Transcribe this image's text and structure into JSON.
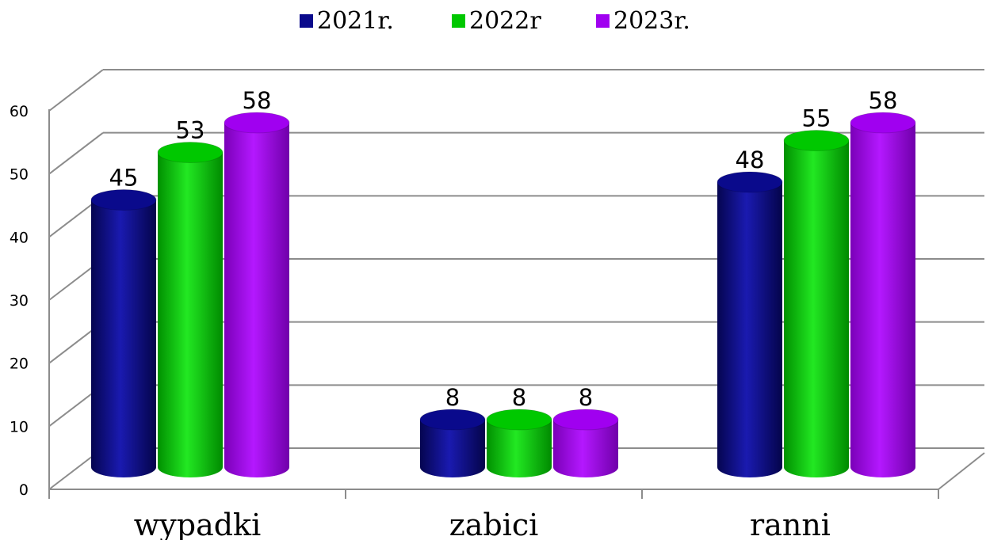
{
  "chart_data": {
    "type": "bar",
    "categories": [
      "wypadki",
      "zabici",
      "ranni"
    ],
    "series": [
      {
        "name": "2021r.",
        "values": [
          45,
          8,
          48
        ],
        "color": "#0a0a8c"
      },
      {
        "name": "2022r",
        "values": [
          53,
          8,
          55
        ],
        "color": "#00c800"
      },
      {
        "name": "2023r.",
        "values": [
          58,
          8,
          58
        ],
        "color": "#a000f0"
      }
    ],
    "yticks": [
      "0",
      "10",
      "20",
      "30",
      "40",
      "50",
      "60"
    ],
    "ylim": [
      0,
      60
    ],
    "grid": true,
    "legend": "top",
    "style": "3d-cylinder"
  }
}
